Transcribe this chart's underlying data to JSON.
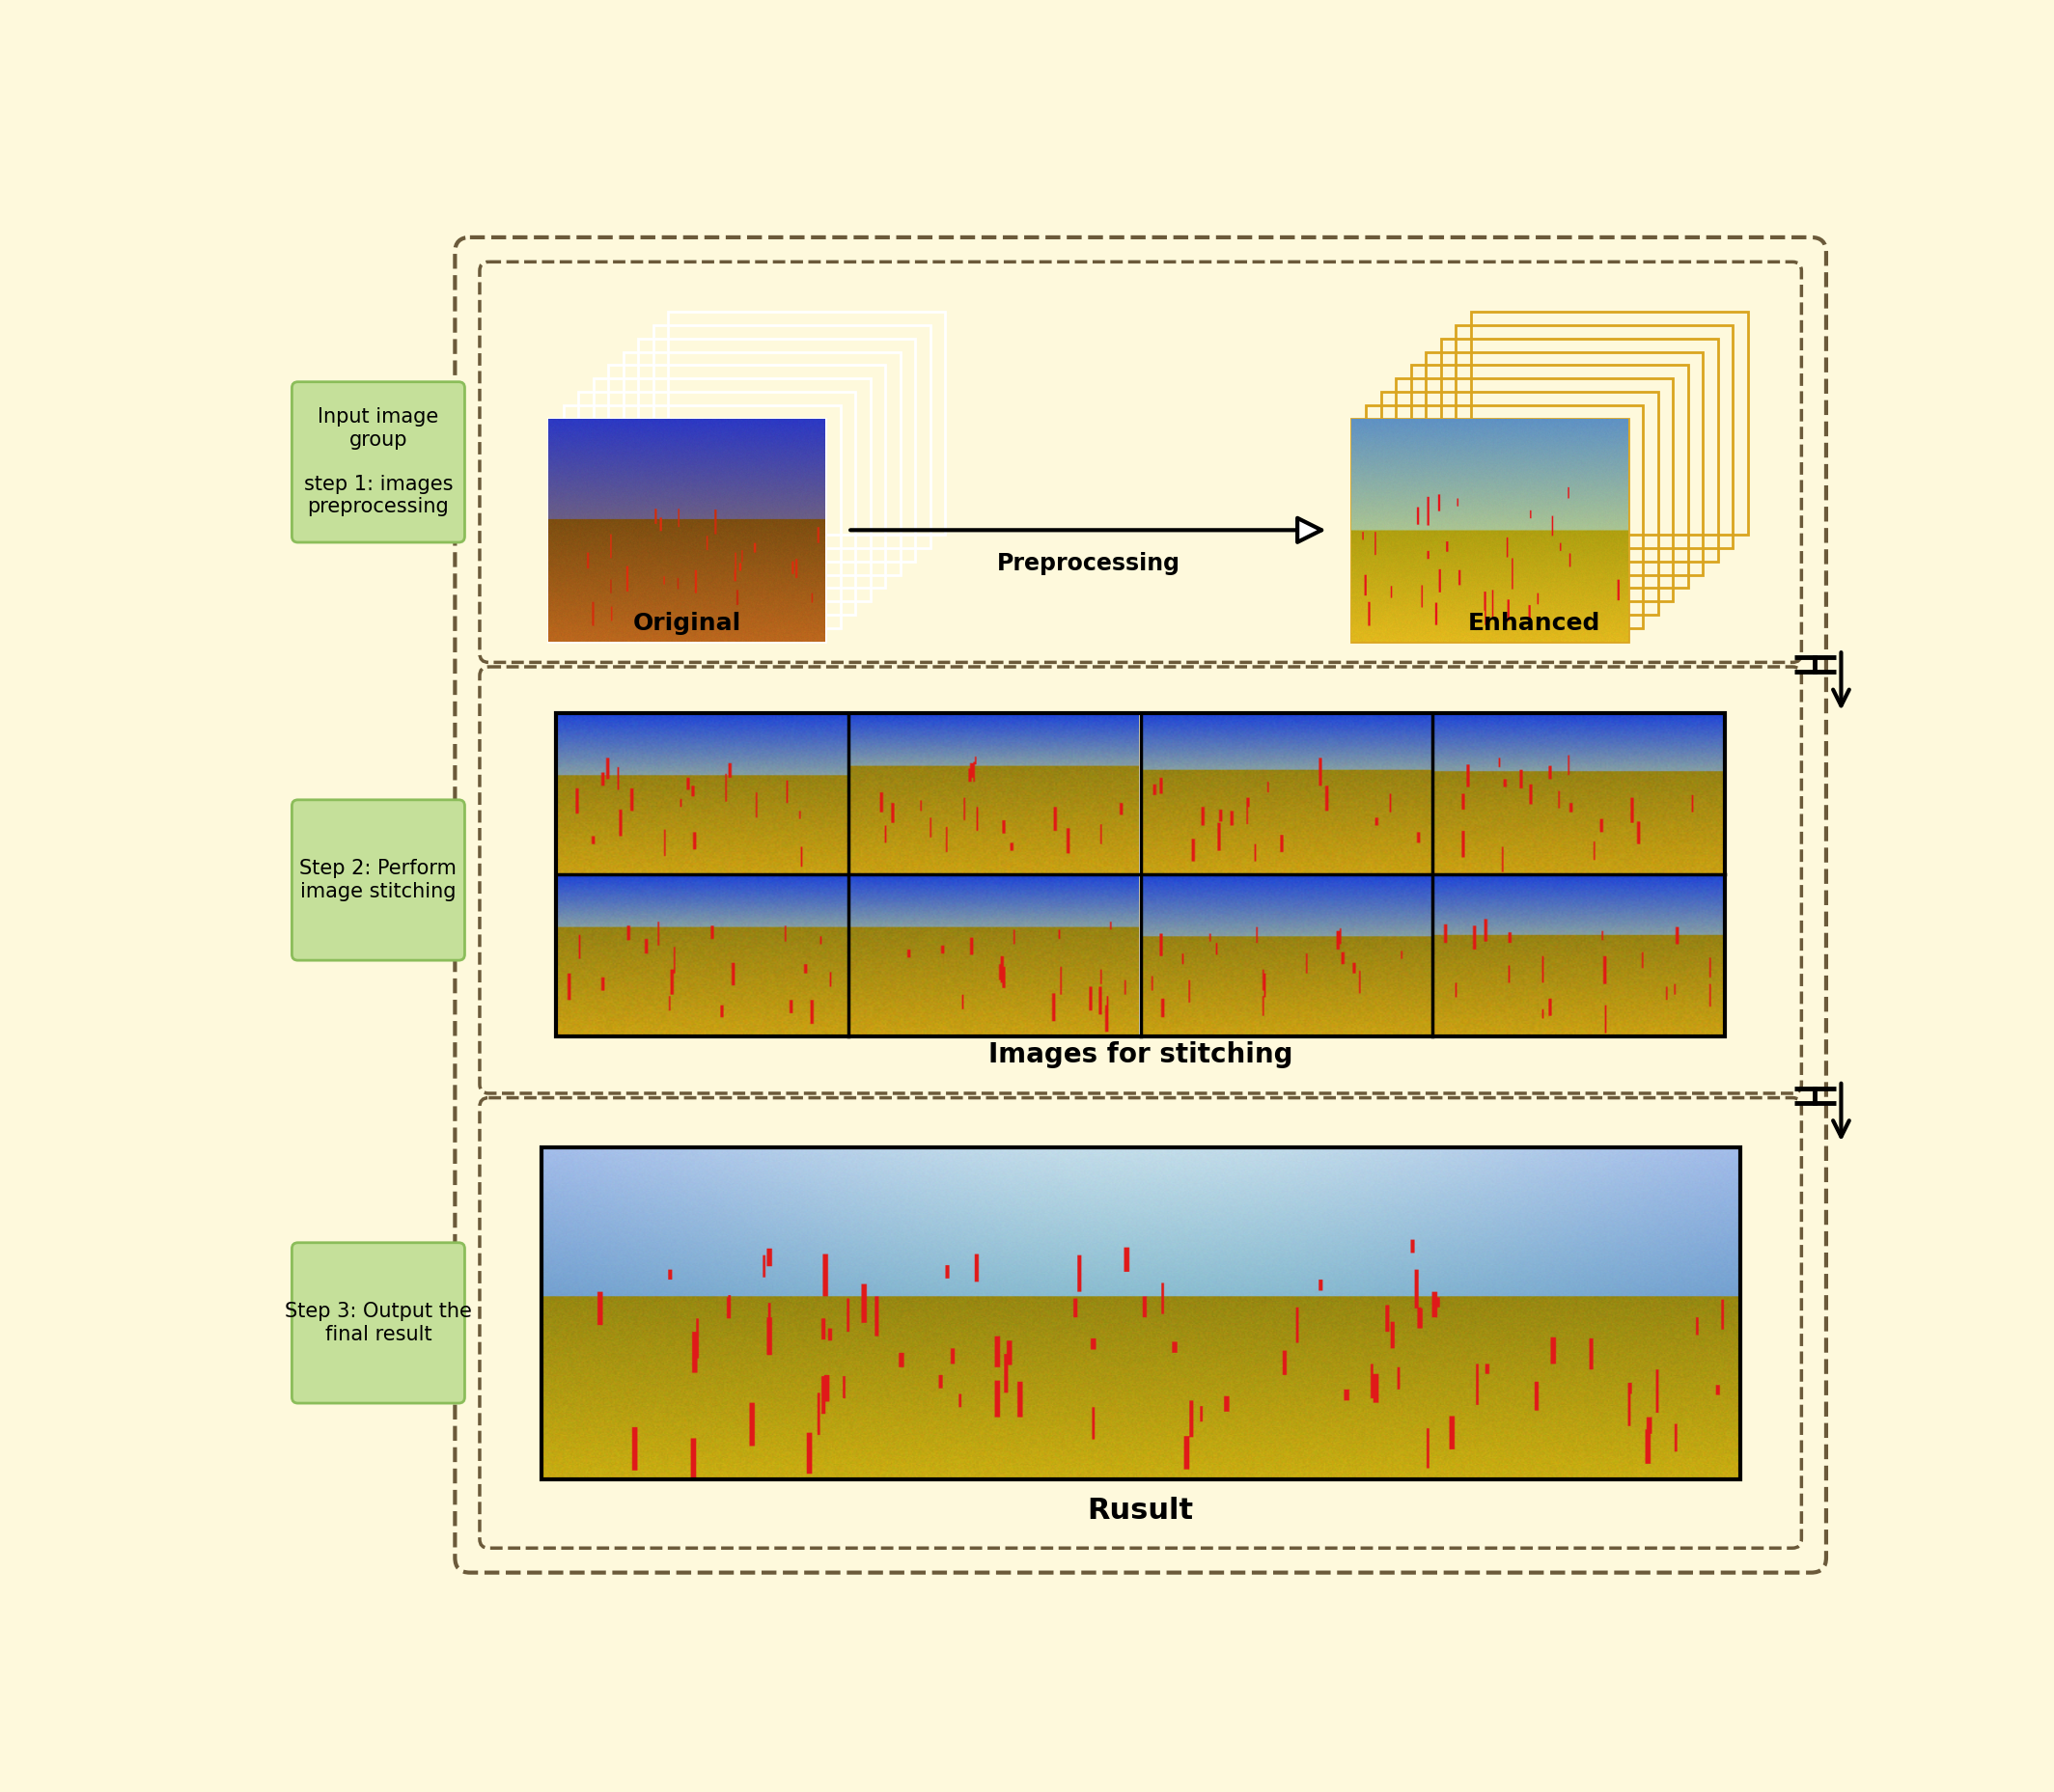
{
  "bg_color": "#FEF9DC",
  "green_box_color": "#C5E09A",
  "green_box_edge": "#8BBD5A",
  "dashed_color": "#6B5A3A",
  "label1_text": "Input image\ngroup\n\nstep 1: images\npreprocessing",
  "label2_text": "Step 2: Perform\nimage stitching",
  "label3_text": "Step 3: Output the\nfinal result",
  "orig_label": "Original",
  "enhanced_label": "Enhanced",
  "prep_label": "Preprocessing",
  "stitch_label": "Images for stitching",
  "result_label": "Rusult"
}
